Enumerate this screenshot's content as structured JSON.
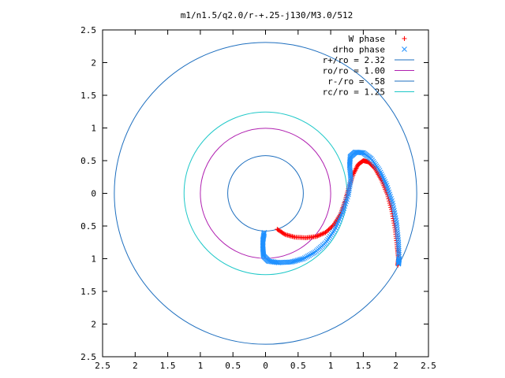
{
  "chart_data": {
    "type": "scatter",
    "title": "m1/n1.5/q2.0/r-+.25-j130/M3.0/512",
    "xlabel": "",
    "ylabel": "",
    "xlim": [
      -2.5,
      2.5
    ],
    "ylim": [
      -2.5,
      2.5
    ],
    "x_ticks": [
      -2.5,
      -2,
      -1.5,
      -1,
      -0.5,
      0,
      0.5,
      1,
      1.5,
      2,
      2.5
    ],
    "y_ticks": [
      2.5,
      2,
      1.5,
      1,
      0.5,
      0,
      -0.5,
      -1,
      -1.5,
      -2,
      -2.5
    ],
    "x_tick_labels": [
      "2.5",
      "2",
      "1.5",
      "1",
      "0.5",
      "0",
      "0.5",
      "1",
      "1.5",
      "2",
      "2.5"
    ],
    "y_tick_labels": [
      "2.5",
      "2",
      "1.5",
      "1",
      "0.5",
      "0",
      "0.5",
      "1",
      "1.5",
      "2",
      "2.5"
    ],
    "grid": false,
    "legend_position": "top-right",
    "series": [
      {
        "name": "W phase",
        "marker": "+",
        "color": "#ff0000",
        "points": [
          [
            0.18,
            -0.55
          ],
          [
            0.3,
            -0.63
          ],
          [
            0.45,
            -0.67
          ],
          [
            0.62,
            -0.68
          ],
          [
            0.78,
            -0.66
          ],
          [
            0.92,
            -0.6
          ],
          [
            1.05,
            -0.48
          ],
          [
            1.15,
            -0.32
          ],
          [
            1.22,
            -0.12
          ],
          [
            1.28,
            0.1
          ],
          [
            1.35,
            0.3
          ],
          [
            1.42,
            0.44
          ],
          [
            1.5,
            0.5
          ],
          [
            1.58,
            0.48
          ],
          [
            1.68,
            0.38
          ],
          [
            1.78,
            0.2
          ],
          [
            1.87,
            -0.02
          ],
          [
            1.94,
            -0.28
          ],
          [
            1.99,
            -0.56
          ],
          [
            2.02,
            -0.82
          ],
          [
            2.04,
            -1.0
          ],
          [
            2.03,
            -1.1
          ]
        ]
      },
      {
        "name": "drho phase",
        "marker": "x",
        "color": "#1e90ff",
        "points": [
          [
            -0.02,
            -0.6
          ],
          [
            -0.04,
            -0.72
          ],
          [
            -0.04,
            -0.85
          ],
          [
            -0.03,
            -0.96
          ],
          [
            0.05,
            -1.04
          ],
          [
            0.2,
            -1.06
          ],
          [
            0.4,
            -1.05
          ],
          [
            0.58,
            -1.0
          ],
          [
            0.76,
            -0.9
          ],
          [
            0.92,
            -0.76
          ],
          [
            1.06,
            -0.56
          ],
          [
            1.18,
            -0.3
          ],
          [
            1.27,
            -0.02
          ],
          [
            1.31,
            0.22
          ],
          [
            1.29,
            0.42
          ],
          [
            1.3,
            0.56
          ],
          [
            1.38,
            0.63
          ],
          [
            1.5,
            0.62
          ],
          [
            1.62,
            0.53
          ],
          [
            1.75,
            0.35
          ],
          [
            1.86,
            0.12
          ],
          [
            1.95,
            -0.15
          ],
          [
            2.01,
            -0.45
          ],
          [
            2.04,
            -0.75
          ],
          [
            2.05,
            -1.0
          ],
          [
            2.04,
            -1.08
          ]
        ]
      },
      {
        "name": "r+/ro = 2.32",
        "type": "circle",
        "radius": 2.32,
        "color": "#1e6fbf"
      },
      {
        "name": "ro/ro = 1.00",
        "type": "circle",
        "radius": 1.0,
        "color": "#b020b0"
      },
      {
        "name": "r-/ro = .58",
        "type": "circle",
        "radius": 0.58,
        "color": "#1e6fbf"
      },
      {
        "name": "rc/ro = 1.25",
        "type": "circle",
        "radius": 1.25,
        "color": "#1ec8c8"
      }
    ]
  }
}
